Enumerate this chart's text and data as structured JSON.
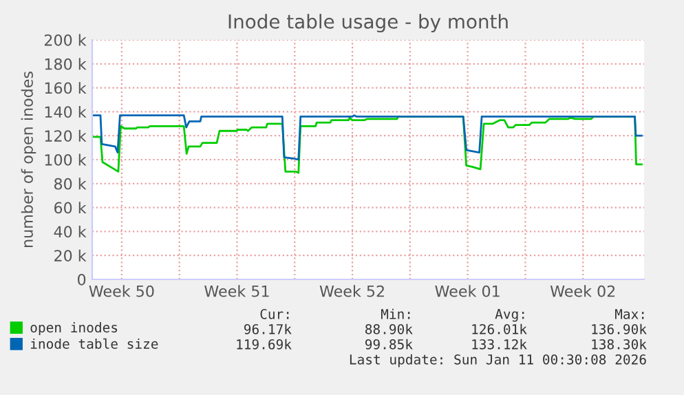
{
  "chart_data": {
    "type": "line",
    "title": "Inode table usage - by month",
    "ylabel": "number of open inodes",
    "xlim": [
      "2025-12-09T17:00",
      "2026-01-12T05:00"
    ],
    "xticks": [
      {
        "value": "2025-12-11T12:00",
        "label": "Week 50"
      },
      {
        "value": "2025-12-15",
        "label": null
      },
      {
        "value": "2025-12-18T12:00",
        "label": "Week 51"
      },
      {
        "value": "2025-12-22",
        "label": null
      },
      {
        "value": "2025-12-25T12:00",
        "label": "Week 52"
      },
      {
        "value": "2025-12-29",
        "label": null
      },
      {
        "value": "2026-01-01T12:00",
        "label": "Week 01"
      },
      {
        "value": "2026-01-05",
        "label": null
      },
      {
        "value": "2026-01-08T12:00",
        "label": "Week 02"
      }
    ],
    "ylim": [
      0,
      200000
    ],
    "yticks": [
      {
        "value": 0,
        "label": "0"
      },
      {
        "value": 20000,
        "label": "20 k"
      },
      {
        "value": 40000,
        "label": "40 k"
      },
      {
        "value": 60000,
        "label": "60 k"
      },
      {
        "value": 80000,
        "label": "80 k"
      },
      {
        "value": 100000,
        "label": "100 k"
      },
      {
        "value": 120000,
        "label": "120 k"
      },
      {
        "value": 140000,
        "label": "140 k"
      },
      {
        "value": 160000,
        "label": "160 k"
      },
      {
        "value": 180000,
        "label": "180 k"
      },
      {
        "value": 200000,
        "label": "200 k"
      }
    ],
    "grid": true,
    "legend": "bottom",
    "marker": "none",
    "line_style": "solid",
    "series": [
      {
        "name": "open inodes",
        "color": "#00cc00",
        "x": [
          "2025-12-09T17:00",
          "2025-12-10T05:00",
          "2025-12-10T08:00",
          "2025-12-11T07:00",
          "2025-12-11T10:30",
          "2025-12-11T16:00",
          "2025-12-12T08:30",
          "2025-12-12T11:00",
          "2025-12-13T02:30",
          "2025-12-13T05:00",
          "2025-12-15T06:30",
          "2025-12-15T10:30",
          "2025-12-15T13:30",
          "2025-12-16T06:30",
          "2025-12-16T09:30",
          "2025-12-17T06:30",
          "2025-12-17T10:30",
          "2025-12-18T11:30",
          "2025-12-18T13:00",
          "2025-12-19T02:00",
          "2025-12-19T04:00",
          "2025-12-19T09:30",
          "2025-12-20T06:30",
          "2025-12-20T08:00",
          "2025-12-21T06:00",
          "2025-12-21T10:30",
          "2025-12-22T02:00",
          "2025-12-22T05:30",
          "2025-12-22T08:30",
          "2025-12-23T06:30",
          "2025-12-23T08:00",
          "2025-12-24T04:00",
          "2025-12-24T05:30",
          "2025-12-25T06:30",
          "2025-12-25T08:00",
          "2025-12-25T12:00",
          "2025-12-26T06:00",
          "2025-12-26T09:30",
          "2025-12-28T05:00",
          "2025-12-28T06:30",
          "2026-01-01T05:30",
          "2026-01-01T10:00",
          "2026-01-01T18:30",
          "2026-01-02T06:30",
          "2026-01-02T11:30",
          "2026-01-03T00:30",
          "2026-01-03T04:00",
          "2026-01-03T11:00",
          "2026-01-03T17:30",
          "2026-01-03T23:00",
          "2026-01-04T06:30",
          "2026-01-04T10:00",
          "2026-01-05T06:00",
          "2026-01-05T09:30",
          "2026-01-06T05:30",
          "2026-01-06T11:00",
          "2026-01-07T14:30",
          "2026-01-07T18:00",
          "2026-01-08T00:30",
          "2026-01-09T00:00",
          "2026-01-09T03:30",
          "2026-01-11T15:30",
          "2026-01-11T17:30",
          "2026-01-12T01:30"
        ],
        "values": [
          119000,
          119000,
          98000,
          90000,
          128000,
          126000,
          126000,
          127000,
          127000,
          128000,
          128000,
          105000,
          111000,
          111000,
          114000,
          114000,
          124000,
          124000,
          125000,
          125000,
          124000,
          127000,
          127000,
          130000,
          130000,
          90000,
          90000,
          89000,
          128000,
          128000,
          131000,
          131000,
          133000,
          133000,
          135000,
          133000,
          133000,
          134000,
          134000,
          136000,
          136000,
          95000,
          94000,
          92000,
          130000,
          130000,
          131000,
          133000,
          133000,
          127000,
          127000,
          129000,
          129000,
          131000,
          131000,
          134000,
          134000,
          135000,
          134000,
          134000,
          136000,
          136000,
          96000,
          96000
        ]
      },
      {
        "name": "inode table size",
        "color": "#0066b3",
        "x": [
          "2025-12-09T17:00",
          "2025-12-10T05:00",
          "2025-12-10T07:00",
          "2025-12-11T02:30",
          "2025-12-11T06:00",
          "2025-12-11T09:30",
          "2025-12-15T06:30",
          "2025-12-15T10:00",
          "2025-12-15T14:30",
          "2025-12-16T06:30",
          "2025-12-16T08:00",
          "2025-12-21T06:00",
          "2025-12-21T08:30",
          "2025-12-21T22:30",
          "2025-12-22T05:30",
          "2025-12-22T08:30",
          "2025-12-25T12:00",
          "2025-12-25T14:30",
          "2025-12-25T18:00",
          "2026-01-01T05:30",
          "2026-01-01T10:00",
          "2026-01-02T05:00",
          "2026-01-02T08:30",
          "2026-01-11T15:30",
          "2026-01-11T17:00",
          "2026-01-12T01:30"
        ],
        "values": [
          137000,
          137000,
          113000,
          111000,
          106000,
          137000,
          137000,
          127000,
          132000,
          132000,
          136000,
          136000,
          102000,
          101000,
          100000,
          136000,
          136000,
          137000,
          136000,
          136000,
          108000,
          106000,
          136000,
          136000,
          120000,
          120000
        ]
      }
    ],
    "annotations": [
      "Cur:",
      "Min:",
      "Avg:",
      "Max:",
      "96.17k",
      "88.90k",
      "126.01k",
      "136.90k",
      "119.69k",
      "99.85k",
      "133.12k",
      "138.30k",
      "Last update: Sun Jan 11 00:30:08 2026"
    ]
  }
}
